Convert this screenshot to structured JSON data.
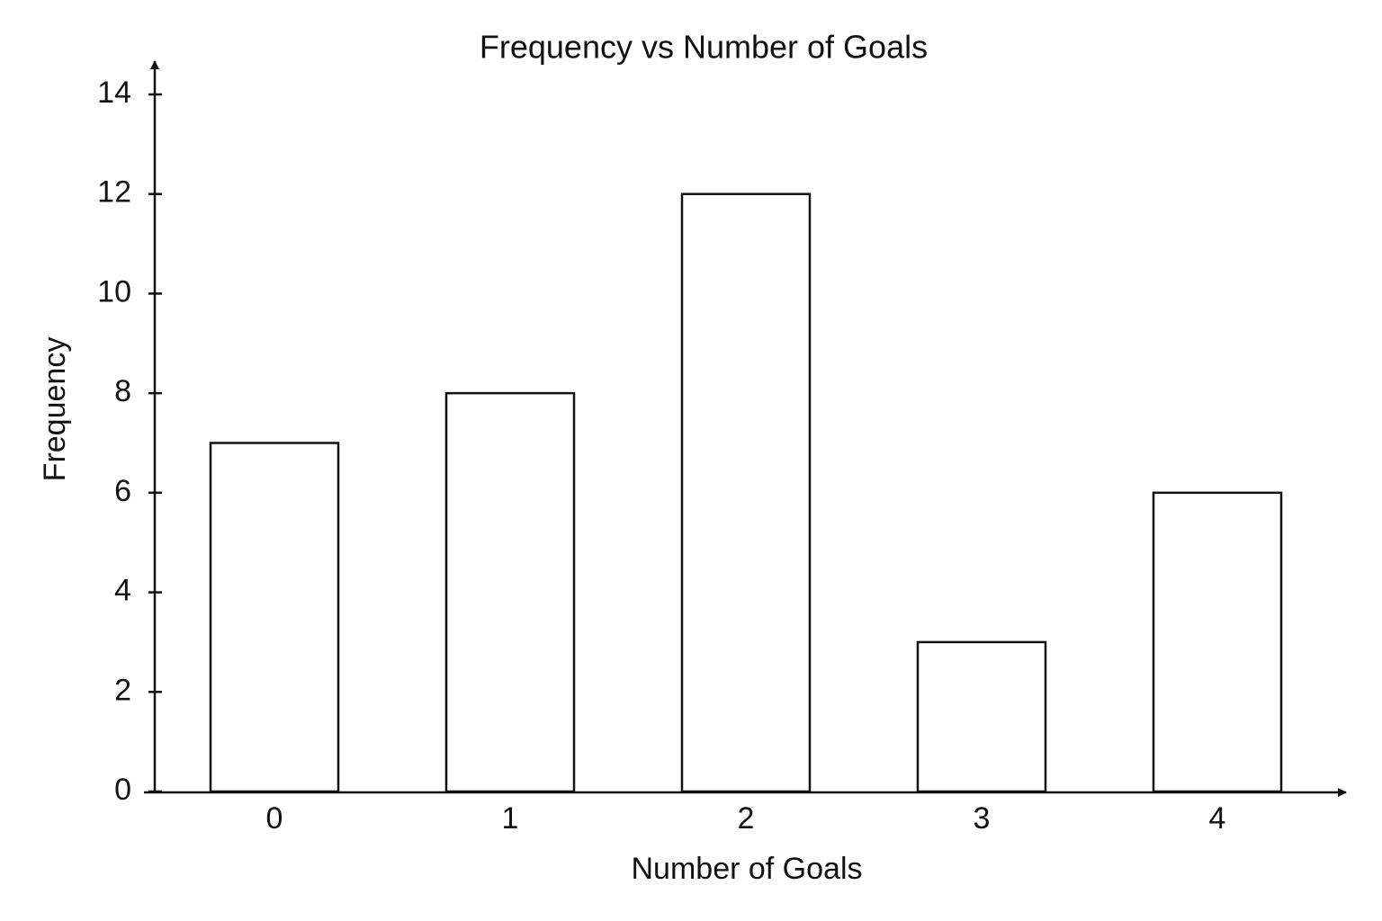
{
  "chart_data": {
    "type": "bar",
    "title": "Frequency vs Number of Goals",
    "x_label": "Number of Goals",
    "y_label": "Frequency",
    "categories": [
      "0",
      "1",
      "2",
      "3",
      "4"
    ],
    "values": [
      7,
      8,
      12,
      3,
      6
    ],
    "color": "#ffffff",
    "ylim": [
      0,
      14
    ],
    "yticks": [
      0,
      2,
      4,
      6,
      8,
      10,
      12,
      14
    ],
    "grid": false
  }
}
